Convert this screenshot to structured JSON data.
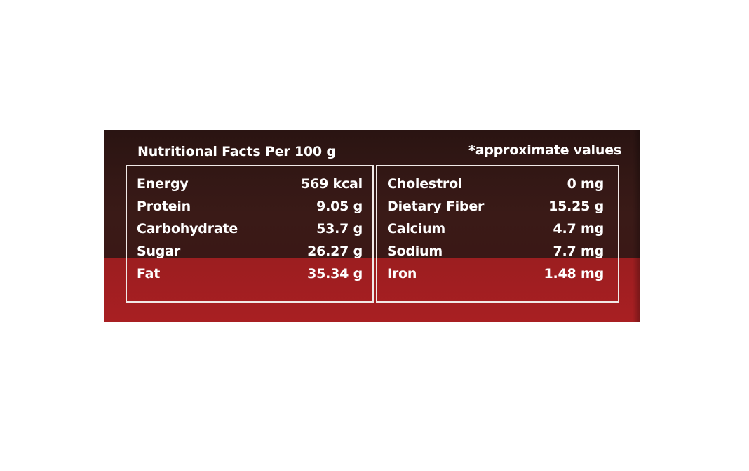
{
  "title": "Nutritional Facts Per 100 g",
  "note": "*approximate values",
  "left_column": [
    {
      "label": "Energy",
      "value": "569 kcal"
    },
    {
      "label": "Protein",
      "value": "9.05 g"
    },
    {
      "label": "Carbohydrate",
      "value": "53.7 g"
    },
    {
      "label": "Sugar",
      "value": "26.27 g"
    },
    {
      "label": "Fat",
      "value": "35.34 g"
    }
  ],
  "right_column": [
    {
      "label": "Cholestrol",
      "value": "0 mg"
    },
    {
      "label": "Dietary Fiber",
      "value": "15.25 g"
    },
    {
      "label": "Calcium",
      "value": "4.7 mg"
    },
    {
      "label": "Sodium",
      "value": "7.7 mg"
    },
    {
      "label": "Iron",
      "value": "1.48 mg"
    }
  ],
  "colors": {
    "dark_band": "#3a1a17",
    "red_band": "#a81f22",
    "text": "#ffffff",
    "border": "#f1e9e7"
  }
}
